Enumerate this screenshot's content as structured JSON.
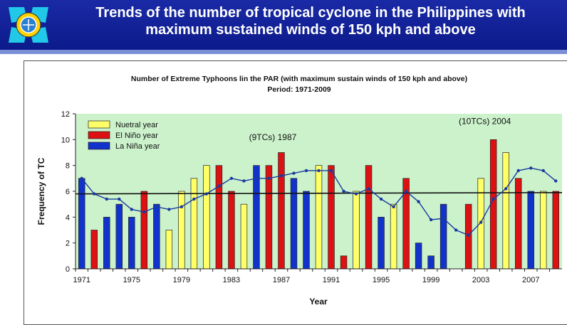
{
  "slide": {
    "title_line1": "Trends of the number of tropical cyclone in the Philippines with",
    "title_line2": "maximum sustained winds of 150 kph and above"
  },
  "colors": {
    "header_bg": "#0c1a8a",
    "plot_bg": "#ccf2cc",
    "neutral": "#ffff66",
    "el_nino": "#dd1111",
    "la_nina": "#1133cc",
    "trend_line": "#1a3aa0",
    "flat_line": "#111111"
  },
  "chart_data": {
    "type": "bar",
    "title_line1": "Number of Extreme Typhoons  lin the PAR (with maximum sustain winds of 150 kph and above)",
    "title_line2": "Period: 1971-2009",
    "xlabel": "Year",
    "ylabel": "Frequency of TC",
    "ylim": [
      0,
      12
    ],
    "yticks": [
      0,
      2,
      4,
      6,
      8,
      10,
      12
    ],
    "xticks": [
      1971,
      1975,
      1979,
      1983,
      1987,
      1991,
      1995,
      1999,
      2003,
      2007
    ],
    "grid": false,
    "legend_position": "top-left",
    "legend": [
      {
        "key": "N",
        "label": "Nuetral year"
      },
      {
        "key": "E",
        "label": "El Niño year"
      },
      {
        "key": "L",
        "label": "La Niña year"
      }
    ],
    "years": [
      1971,
      1972,
      1973,
      1974,
      1975,
      1976,
      1977,
      1978,
      1979,
      1980,
      1981,
      1982,
      1983,
      1984,
      1985,
      1986,
      1987,
      1988,
      1989,
      1990,
      1991,
      1992,
      1993,
      1994,
      1995,
      1996,
      1997,
      1998,
      1999,
      2000,
      2001,
      2002,
      2003,
      2004,
      2005,
      2006,
      2007,
      2008,
      2009
    ],
    "values": [
      7,
      3,
      4,
      5,
      4,
      6,
      5,
      3,
      6,
      7,
      8,
      8,
      6,
      5,
      8,
      8,
      9,
      7,
      6,
      8,
      8,
      1,
      6,
      8,
      4,
      5,
      7,
      2,
      1,
      5,
      0,
      5,
      7,
      10,
      9,
      7,
      6,
      6,
      6
    ],
    "year_type": [
      "L",
      "E",
      "L",
      "L",
      "L",
      "E",
      "L",
      "N",
      "N",
      "N",
      "N",
      "E",
      "E",
      "N",
      "L",
      "E",
      "E",
      "L",
      "L",
      "N",
      "E",
      "E",
      "N",
      "E",
      "L",
      "N",
      "E",
      "L",
      "L",
      "L",
      "L",
      "E",
      "N",
      "E",
      "N",
      "E",
      "L",
      "N",
      "E"
    ],
    "moving_average": [
      7.0,
      5.8,
      5.4,
      5.4,
      4.6,
      4.4,
      4.8,
      4.6,
      4.8,
      5.4,
      5.8,
      6.4,
      7.0,
      6.8,
      7.0,
      7.0,
      7.2,
      7.4,
      7.6,
      7.6,
      7.6,
      6.0,
      5.8,
      6.2,
      5.4,
      4.8,
      6.0,
      5.2,
      3.8,
      3.9,
      3.0,
      2.6,
      3.6,
      5.4,
      6.2,
      7.6,
      7.8,
      7.6,
      6.8
    ],
    "mean_line": {
      "y_start": 5.8,
      "y_end": 5.9
    },
    "annotations": [
      {
        "text": "(9TCs) 1987",
        "year": 1987
      },
      {
        "text": "(10TCs) 2004",
        "year": 2004
      }
    ]
  }
}
